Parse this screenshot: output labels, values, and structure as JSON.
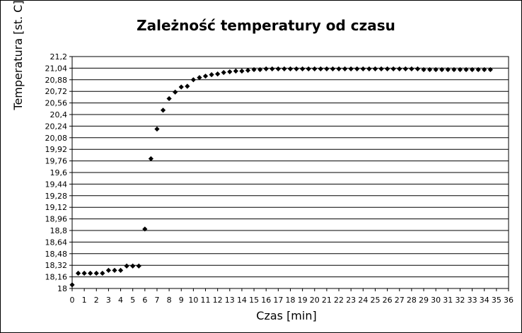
{
  "chart_data": {
    "type": "scatter",
    "title": "Zależność temperatury od czasu",
    "xlabel": "Czas [min]",
    "ylabel": "Temperatura [st. C]",
    "xlim": [
      0,
      36
    ],
    "ylim": [
      18,
      21.2
    ],
    "x_ticks": [
      "0",
      "1",
      "2",
      "3",
      "4",
      "5",
      "6",
      "7",
      "8",
      "9",
      "10",
      "11",
      "12",
      "13",
      "14",
      "15",
      "16",
      "17",
      "18",
      "19",
      "20",
      "21",
      "22",
      "23",
      "24",
      "25",
      "26",
      "27",
      "28",
      "29",
      "30",
      "31",
      "32",
      "33",
      "34",
      "35",
      "36"
    ],
    "y_ticks": [
      "18",
      "18,16",
      "18,32",
      "18,48",
      "18,64",
      "18,8",
      "18,96",
      "19,12",
      "19,28",
      "19,44",
      "19,6",
      "19,76",
      "19,92",
      "20,08",
      "20,24",
      "20,4",
      "20,56",
      "20,72",
      "20,88",
      "21,04",
      "21,2"
    ],
    "grid": "horizontal",
    "legend": "none",
    "marker": "diamond",
    "series": [
      {
        "x": [
          0,
          0.5,
          1,
          1.5,
          2,
          2.5,
          3,
          3.5,
          4,
          4.5,
          5,
          5.5,
          6,
          6.5,
          7,
          7.5,
          8,
          8.5,
          9,
          9.5,
          10,
          10.5,
          11,
          11.5,
          12,
          12.5,
          13,
          13.5,
          14,
          14.5,
          15,
          15.5,
          16,
          16.5,
          17,
          17.5,
          18,
          18.5,
          19,
          19.5,
          20,
          20.5,
          21,
          21.5,
          22,
          22.5,
          23,
          23.5,
          24,
          24.5,
          25,
          25.5,
          26,
          26.5,
          27,
          27.5,
          28,
          28.5,
          29,
          29.5,
          30,
          30.5,
          31,
          31.5,
          32,
          32.5,
          33,
          33.5,
          34,
          34.5
        ],
        "y": [
          18.05,
          18.21,
          18.21,
          18.21,
          18.21,
          18.21,
          18.25,
          18.25,
          18.25,
          18.31,
          18.31,
          18.31,
          18.82,
          19.79,
          20.2,
          20.46,
          20.62,
          20.71,
          20.78,
          20.79,
          20.88,
          20.91,
          20.93,
          20.95,
          20.96,
          20.98,
          20.99,
          21.0,
          21.0,
          21.01,
          21.02,
          21.02,
          21.03,
          21.03,
          21.03,
          21.03,
          21.03,
          21.03,
          21.03,
          21.03,
          21.03,
          21.03,
          21.03,
          21.03,
          21.03,
          21.03,
          21.03,
          21.03,
          21.03,
          21.03,
          21.03,
          21.03,
          21.03,
          21.03,
          21.03,
          21.03,
          21.03,
          21.03,
          21.02,
          21.02,
          21.02,
          21.02,
          21.02,
          21.02,
          21.02,
          21.02,
          21.02,
          21.02,
          21.02,
          21.02
        ]
      }
    ]
  },
  "colors": {
    "marker": "#000000",
    "grid": "#000000",
    "axis": "#000000",
    "background": "#ffffff"
  }
}
